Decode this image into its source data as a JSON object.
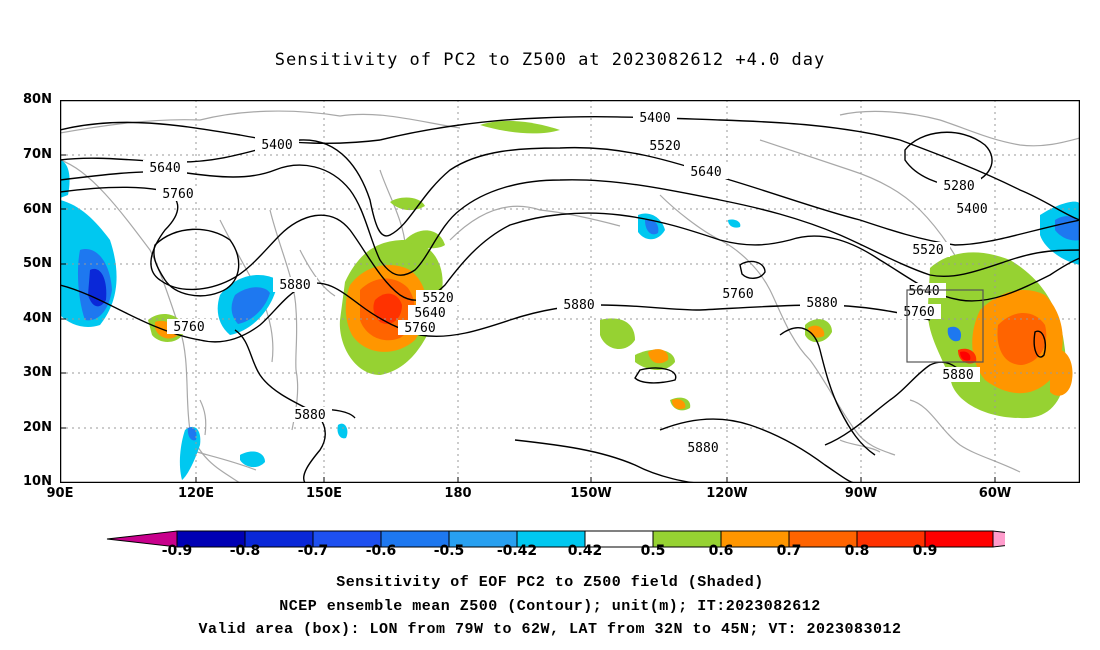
{
  "title": "Sensitivity of PC2 to Z500 at 2023082612 +4.0 day",
  "lat_labels": [
    "80N",
    "70N",
    "60N",
    "50N",
    "40N",
    "30N",
    "20N",
    "10N"
  ],
  "lon_labels": [
    "90E",
    "120E",
    "150E",
    "180",
    "150W",
    "120W",
    "90W",
    "60W"
  ],
  "contour_labels": [
    "5400",
    "5640",
    "5760",
    "5880",
    "5760",
    "5880",
    "5520",
    "5640",
    "5760",
    "5400",
    "5520",
    "5640",
    "5760",
    "5880",
    "5880",
    "5280",
    "5400",
    "5520",
    "5640",
    "5760",
    "5880",
    "5880"
  ],
  "colorbar": {
    "labels": [
      "-0.9",
      "-0.8",
      "-0.7",
      "-0.6",
      "-0.5",
      "-0.42",
      "0.42",
      "0.5",
      "0.6",
      "0.7",
      "0.8",
      "0.9"
    ],
    "colors": [
      "#0000b4",
      "#0a28d8",
      "#1e50f0",
      "#1e78f0",
      "#28a0f0",
      "#00c8f0",
      "#ffffff",
      "#96d232",
      "#ff9600",
      "#ff6400",
      "#ff3200",
      "#ff0000"
    ],
    "low_end_color": "#c8008c",
    "high_end_color": "#ff9ccc"
  },
  "caption": {
    "line1": "Sensitivity of EOF PC2 to Z500 field (Shaded)",
    "line2": "NCEP ensemble mean Z500 (Contour); unit(m); IT:2023082612",
    "line3": "Valid area (box): LON from 79W to 62W, LAT from 32N to 45N; VT: 2023083012"
  }
}
